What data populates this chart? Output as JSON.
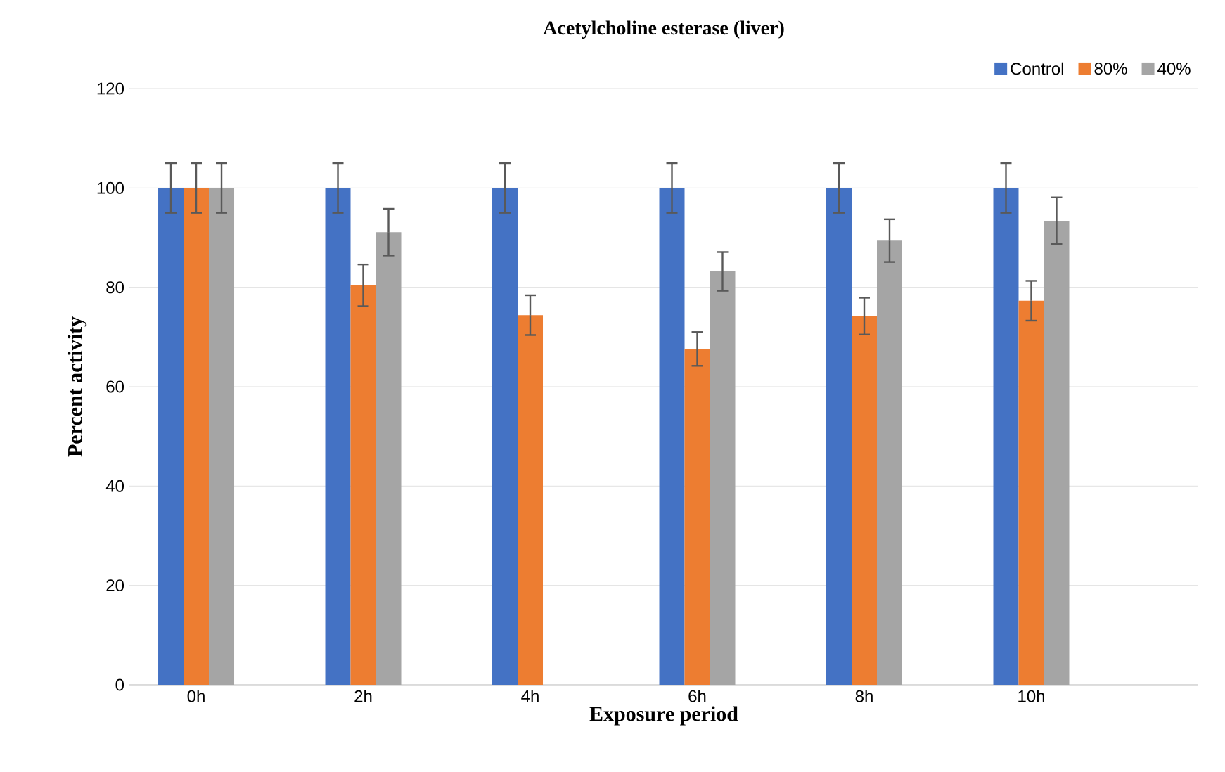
{
  "chart_data": {
    "type": "bar",
    "title": "Acetylcholine esterase (liver)",
    "xlabel": "Exposure period",
    "ylabel": "Percent activity",
    "categories": [
      "0h",
      "2h",
      "4h",
      "6h",
      "8h",
      "10h"
    ],
    "series": [
      {
        "name": "Control",
        "color": "#4472c4",
        "values": [
          100,
          100,
          100,
          100,
          100,
          100
        ],
        "errors": [
          5,
          5,
          5,
          5,
          5,
          5
        ]
      },
      {
        "name": "80%",
        "color": "#ed7d31",
        "values": [
          100,
          80.4,
          74.4,
          67.6,
          74.2,
          77.3
        ],
        "errors": [
          5,
          4.2,
          4,
          3.4,
          3.7,
          4
        ]
      },
      {
        "name": "40%",
        "color": "#a5a5a5",
        "values": [
          100,
          91.1,
          0,
          83.2,
          89.4,
          93.4
        ],
        "errors": [
          5,
          4.7,
          null,
          3.9,
          4.3,
          4.7
        ]
      }
    ],
    "ylim": [
      0,
      120
    ],
    "yticks": [
      0,
      20,
      40,
      60,
      80,
      100,
      120
    ],
    "grid": "y",
    "legend": "top right"
  }
}
